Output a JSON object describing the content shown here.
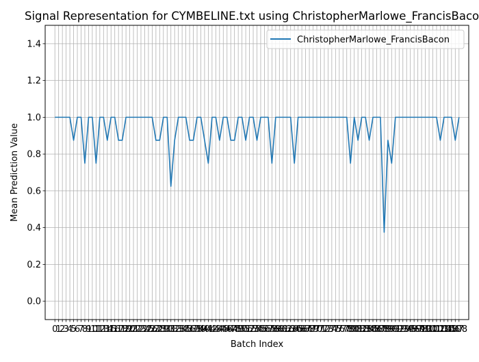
{
  "chart_data": {
    "type": "line",
    "title": "Signal Representation for CYMBELINE.txt using ChristopherMarlowe_FrancisBacon",
    "xlabel": "Batch Index",
    "ylabel": "Mean Prediction Value",
    "ylim": [
      -0.1,
      1.5
    ],
    "xlim": [
      -2.6,
      110.6
    ],
    "yticks": [
      0.0,
      0.2,
      0.4,
      0.6,
      0.8,
      1.0,
      1.2,
      1.4
    ],
    "ytick_labels": [
      "0.0",
      "0.2",
      "0.4",
      "0.6",
      "0.8",
      "1.0",
      "1.2",
      "1.4"
    ],
    "grid": true,
    "legend": {
      "placement": "top-right"
    },
    "series": [
      {
        "name": "ChristopherMarlowe_FrancisBacon",
        "color": "#1f77b4",
        "x": [
          0,
          1,
          2,
          3,
          4,
          5,
          6,
          7,
          8,
          9,
          10,
          11,
          12,
          13,
          14,
          15,
          16,
          17,
          18,
          19,
          20,
          21,
          22,
          23,
          24,
          25,
          26,
          27,
          28,
          29,
          30,
          31,
          32,
          33,
          34,
          35,
          36,
          37,
          38,
          39,
          40,
          41,
          42,
          43,
          44,
          45,
          46,
          47,
          48,
          49,
          50,
          51,
          52,
          53,
          54,
          55,
          56,
          57,
          58,
          59,
          60,
          61,
          62,
          63,
          64,
          65,
          66,
          67,
          68,
          69,
          70,
          71,
          72,
          73,
          74,
          75,
          76,
          77,
          78,
          79,
          80,
          81,
          82,
          83,
          84,
          85,
          86,
          87,
          88,
          89,
          90,
          91,
          92,
          93,
          94,
          95,
          96,
          97,
          98,
          99,
          100,
          101,
          102,
          103,
          104,
          105,
          106,
          107,
          108
        ],
        "values": [
          1.0,
          1.0,
          1.0,
          1.0,
          1.0,
          0.875,
          1.0,
          1.0,
          0.75,
          1.0,
          1.0,
          0.75,
          1.0,
          1.0,
          0.875,
          1.0,
          1.0,
          0.875,
          0.875,
          1.0,
          1.0,
          1.0,
          1.0,
          1.0,
          1.0,
          1.0,
          1.0,
          0.875,
          0.875,
          1.0,
          1.0,
          0.625,
          0.875,
          1.0,
          1.0,
          1.0,
          0.875,
          0.875,
          1.0,
          1.0,
          0.875,
          0.75,
          1.0,
          1.0,
          0.875,
          1.0,
          1.0,
          0.875,
          0.875,
          1.0,
          1.0,
          0.875,
          1.0,
          1.0,
          0.875,
          1.0,
          1.0,
          1.0,
          0.75,
          1.0,
          1.0,
          1.0,
          1.0,
          1.0,
          0.75,
          1.0,
          1.0,
          1.0,
          1.0,
          1.0,
          1.0,
          1.0,
          1.0,
          1.0,
          1.0,
          1.0,
          1.0,
          1.0,
          1.0,
          0.75,
          1.0,
          0.875,
          1.0,
          1.0,
          0.875,
          1.0,
          1.0,
          1.0,
          0.375,
          0.875,
          0.75,
          1.0,
          1.0,
          1.0,
          1.0,
          1.0,
          1.0,
          1.0,
          1.0,
          1.0,
          1.0,
          1.0,
          1.0,
          0.875,
          1.0,
          1.0,
          1.0,
          0.875,
          1.0
        ]
      }
    ]
  }
}
